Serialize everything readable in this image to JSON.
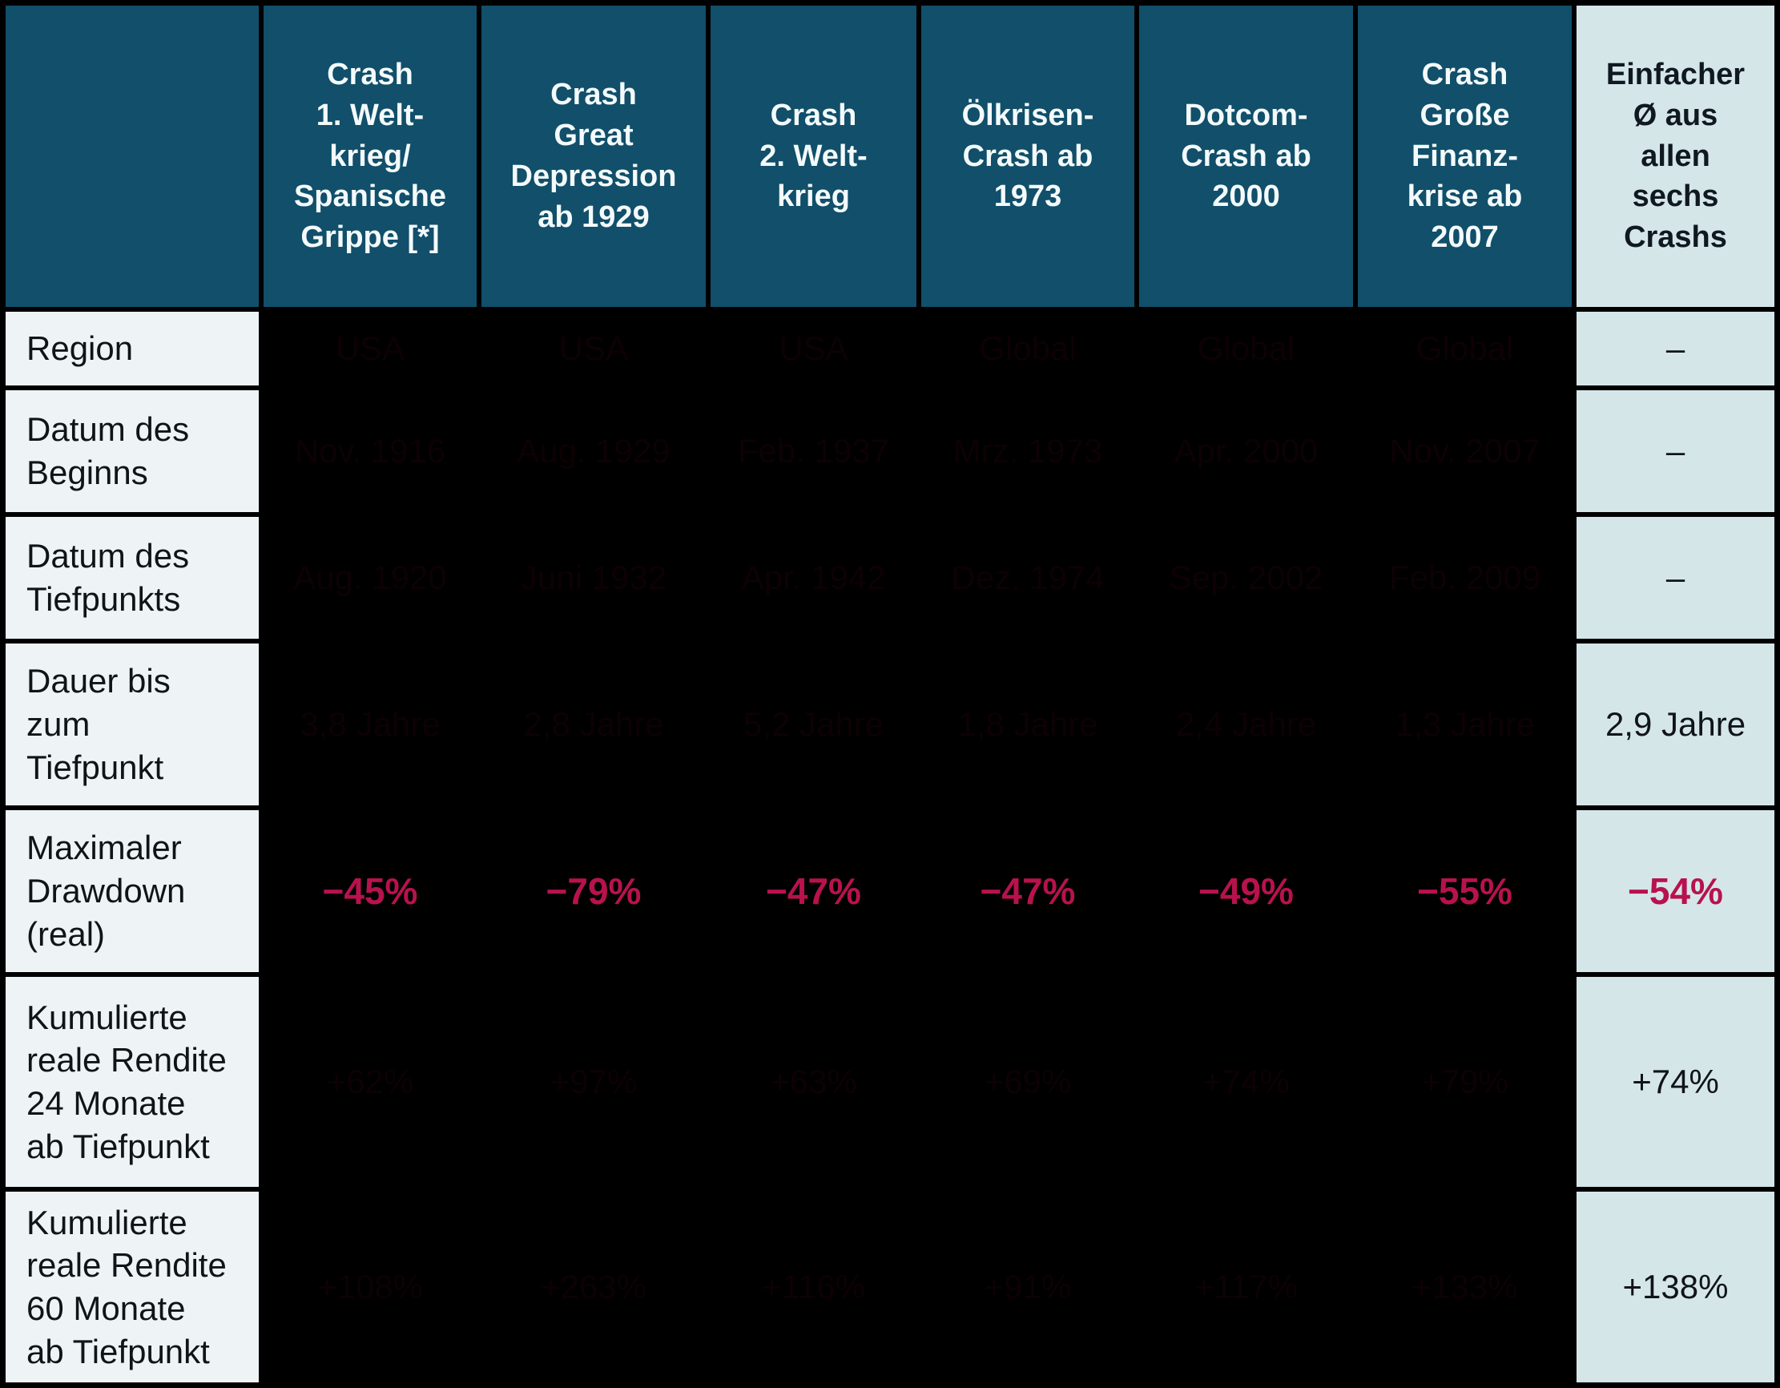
{
  "colors": {
    "header_bg": "#114f6a",
    "header_text": "#f4fafb",
    "row_label_bg": "#eef4f6",
    "avg_column_bg": "#d5e6e9",
    "data_cell_bg": "#000000",
    "negative_accent": "#b8124d",
    "body_text": "#101418"
  },
  "row_labels": {
    "region": "Region",
    "beginn": "Datum des\nBeginns",
    "tiefpunkt": "Datum des\nTiefpunkts",
    "dauer": "Dauer bis\nzum\nTiefpunkt",
    "drawdown": "Maximaler\nDrawdown\n(real)",
    "rendite24": "Kumulierte\nreale Rendite\n24 Monate\nab Tiefpunkt",
    "rendite60": "Kumulierte\nreale Rendite\n60 Monate\nab Tiefpunkt"
  },
  "cols": [
    {
      "header": "Crash\n1. Welt-\nkrieg/\nSpanische\nGrippe [*]",
      "region": "USA",
      "beginn": "Nov. 1916",
      "tiefpunkt": "Aug. 1920",
      "dauer": "3,8 Jahre",
      "drawdown": "−45%",
      "rendite24": "+62%",
      "rendite60": "+108%"
    },
    {
      "header": "Crash\nGreat\nDepression\nab 1929",
      "region": "USA",
      "beginn": "Aug. 1929",
      "tiefpunkt": "Juni 1932",
      "dauer": "2,8 Jahre",
      "drawdown": "−79%",
      "rendite24": "+97%",
      "rendite60": "+263%"
    },
    {
      "header": "Crash\n2. Welt-\nkrieg",
      "region": "USA",
      "beginn": "Feb. 1937",
      "tiefpunkt": "Apr. 1942",
      "dauer": "5,2 Jahre",
      "drawdown": "−47%",
      "rendite24": "+63%",
      "rendite60": "+116%"
    },
    {
      "header": "Ölkrisen-\nCrash ab\n1973",
      "region": "Global",
      "beginn": "Mrz. 1973",
      "tiefpunkt": "Dez. 1974",
      "dauer": "1,8 Jahre",
      "drawdown": "−47%",
      "rendite24": "+69%",
      "rendite60": "+91%"
    },
    {
      "header": "Dotcom-\nCrash ab\n2000",
      "region": "Global",
      "beginn": "Apr. 2000",
      "tiefpunkt": "Sep. 2002",
      "dauer": "2,4 Jahre",
      "drawdown": "−49%",
      "rendite24": "+74%",
      "rendite60": "+117%"
    },
    {
      "header": "Crash\nGroße\nFinanz-\nkrise ab\n2007",
      "region": "Global",
      "beginn": "Nov. 2007",
      "tiefpunkt": "Feb. 2009",
      "dauer": "1,3 Jahre",
      "drawdown": "−55%",
      "rendite24": "+79%",
      "rendite60": "+133%"
    }
  ],
  "avg": {
    "header": "Einfacher\nØ aus\nallen\nsechs\nCrashs",
    "region": "–",
    "beginn": "–",
    "tiefpunkt": "–",
    "dauer": "2,9 Jahre",
    "drawdown": "−54%",
    "rendite24": "+74%",
    "rendite60": "+138%"
  },
  "chart_data": {
    "type": "table",
    "columns": [
      "",
      "Crash 1. Weltkrieg/Spanische Grippe [*]",
      "Crash Great Depression ab 1929",
      "Crash 2. Weltkrieg",
      "Ölkrisen-Crash ab 1973",
      "Dotcom-Crash ab 2000",
      "Crash Große Finanzkrise ab 2007",
      "Einfacher Ø aus allen sechs Crashs"
    ],
    "rows": [
      {
        "label": "Region",
        "values": [
          "USA",
          "USA",
          "USA",
          "Global",
          "Global",
          "Global",
          "–"
        ]
      },
      {
        "label": "Datum des Beginns",
        "values": [
          "Nov. 1916",
          "Aug. 1929",
          "Feb. 1937",
          "Mrz. 1973",
          "Apr. 2000",
          "Nov. 2007",
          "–"
        ]
      },
      {
        "label": "Datum des Tiefpunkts",
        "values": [
          "Aug. 1920",
          "Juni 1932",
          "Apr. 1942",
          "Dez. 1974",
          "Sep. 2002",
          "Feb. 2009",
          "–"
        ]
      },
      {
        "label": "Dauer bis zum Tiefpunkt",
        "values": [
          "3,8 Jahre",
          "2,8 Jahre",
          "5,2 Jahre",
          "1,8 Jahre",
          "2,4 Jahre",
          "1,3 Jahre",
          "2,9 Jahre"
        ]
      },
      {
        "label": "Maximaler Drawdown (real)",
        "values": [
          "−45%",
          "−79%",
          "−47%",
          "−47%",
          "−49%",
          "−55%",
          "−54%"
        ]
      },
      {
        "label": "Kumulierte reale Rendite 24 Monate ab Tiefpunkt",
        "values": [
          "+62%",
          "+97%",
          "+63%",
          "+69%",
          "+74%",
          "+79%",
          "+74%"
        ]
      },
      {
        "label": "Kumulierte reale Rendite 60 Monate ab Tiefpunkt",
        "values": [
          "+108%",
          "+263%",
          "+116%",
          "+91%",
          "+117%",
          "+133%",
          "+138%"
        ]
      }
    ],
    "notes": "Data cells on black background render their black text invisibly in the source image; only the red drawdown values and the light average column are legible."
  }
}
